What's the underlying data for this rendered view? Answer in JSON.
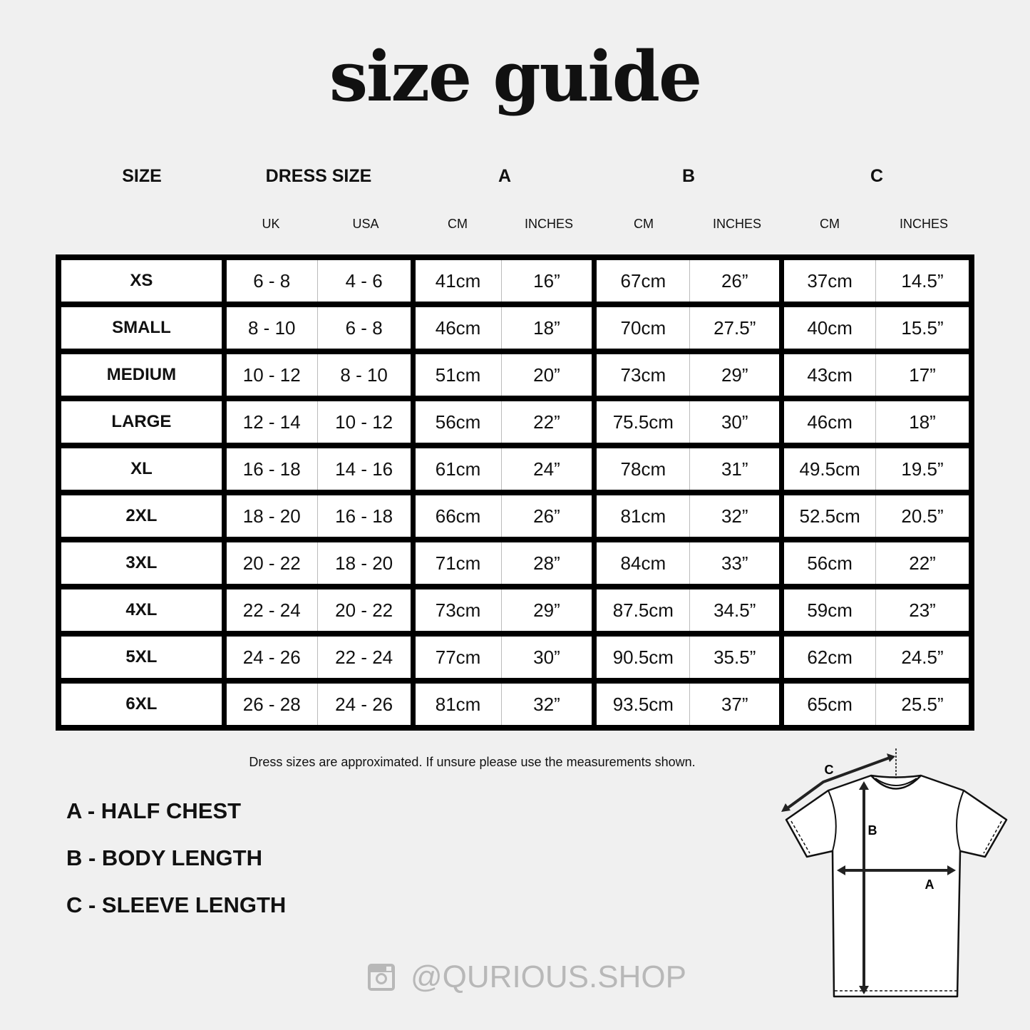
{
  "title": "size guide",
  "headers": {
    "size": "SIZE",
    "dress_size": "DRESS SIZE",
    "a": "A",
    "b": "B",
    "c": "C"
  },
  "subheaders": [
    "UK",
    "USA",
    "CM",
    "INCHES",
    "CM",
    "INCHES",
    "CM",
    "INCHES"
  ],
  "rows": [
    [
      "XS",
      "6 - 8",
      "4 - 6",
      "41cm",
      "16”",
      "67cm",
      "26”",
      "37cm",
      "14.5”"
    ],
    [
      "SMALL",
      "8 - 10",
      "6 - 8",
      "46cm",
      "18”",
      "70cm",
      "27.5”",
      "40cm",
      "15.5”"
    ],
    [
      "MEDIUM",
      "10 - 12",
      "8 - 10",
      "51cm",
      "20”",
      "73cm",
      "29”",
      "43cm",
      "17”"
    ],
    [
      "LARGE",
      "12 - 14",
      "10 - 12",
      "56cm",
      "22”",
      "75.5cm",
      "30”",
      "46cm",
      "18”"
    ],
    [
      "XL",
      "16 - 18",
      "14 - 16",
      "61cm",
      "24”",
      "78cm",
      "31”",
      "49.5cm",
      "19.5”"
    ],
    [
      "2XL",
      "18 - 20",
      "16 - 18",
      "66cm",
      "26”",
      "81cm",
      "32”",
      "52.5cm",
      "20.5”"
    ],
    [
      "3XL",
      "20 - 22",
      "18 - 20",
      "71cm",
      "28”",
      "84cm",
      "33”",
      "56cm",
      "22”"
    ],
    [
      "4XL",
      "22 - 24",
      "20 - 22",
      "73cm",
      "29”",
      "87.5cm",
      "34.5”",
      "59cm",
      "23”"
    ],
    [
      "5XL",
      "24 - 26",
      "22 - 24",
      "77cm",
      "30”",
      "90.5cm",
      "35.5”",
      "62cm",
      "24.5”"
    ],
    [
      "6XL",
      "26 - 28",
      "24 - 26",
      "81cm",
      "32”",
      "93.5cm",
      "37”",
      "65cm",
      "25.5”"
    ]
  ],
  "note": "Dress sizes are approximated. If unsure please use the measurements shown.",
  "legend": [
    "A - HALF CHEST",
    "B - BODY LENGTH",
    "C - SLEEVE LENGTH"
  ],
  "diagram_labels": {
    "a": "A",
    "b": "B",
    "c": "C"
  },
  "social": {
    "icon": "instagram-icon",
    "handle": "@QURIOUS.SHOP",
    "color": "#b8b8b8"
  }
}
